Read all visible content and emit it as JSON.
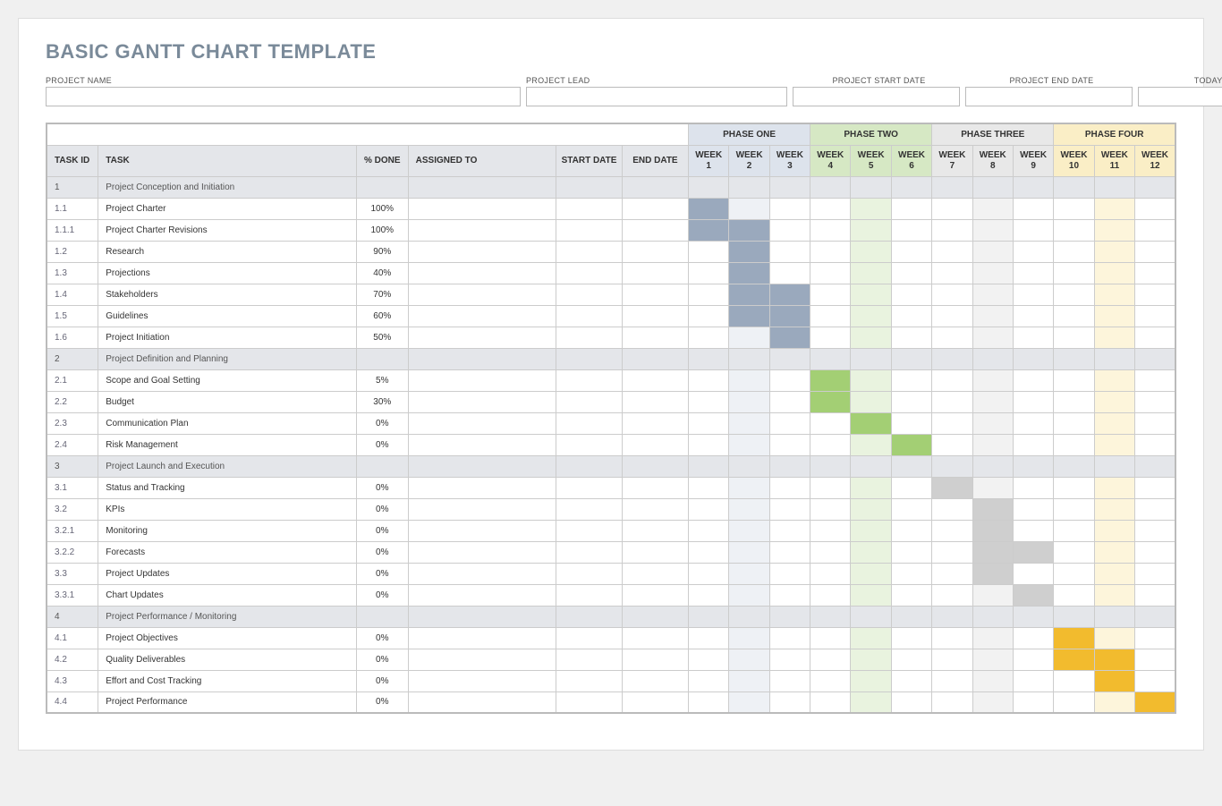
{
  "title": "BASIC GANTT CHART TEMPLATE",
  "meta": {
    "project_name_label": "PROJECT NAME",
    "project_lead_label": "PROJECT LEAD",
    "start_date_label": "PROJECT START DATE",
    "end_date_label": "PROJECT END DATE",
    "todays_date_label": "TODAY'S DATE",
    "project_name": "",
    "project_lead": "",
    "start_date": "",
    "end_date": "",
    "todays_date": ""
  },
  "columns": {
    "task_id": "TASK ID",
    "task": "TASK",
    "pct_done": "% DONE",
    "assigned_to": "ASSIGNED TO",
    "start_date": "START DATE",
    "end_date": "END DATE",
    "week_label": "WEEK"
  },
  "phases": [
    {
      "label": "PHASE ONE",
      "header_bg": "#dde3ec",
      "stripe_bg": "#eef1f5",
      "bar_color": "#9aa9bd"
    },
    {
      "label": "PHASE TWO",
      "header_bg": "#d6e8c4",
      "stripe_bg": "#e9f3df",
      "bar_color": "#a3cf74"
    },
    {
      "label": "PHASE THREE",
      "header_bg": "#e8e8e8",
      "stripe_bg": "#f2f2f2",
      "bar_color": "#cfcfcf"
    },
    {
      "label": "PHASE FOUR",
      "header_bg": "#faeec6",
      "stripe_bg": "#fdf5db",
      "bar_color": "#f2bb2e"
    }
  ],
  "weeks_per_phase": 3,
  "rows": [
    {
      "id": "1",
      "task": "Project Conception and Initiation",
      "pct": "",
      "section": true
    },
    {
      "id": "1.1",
      "task": "Project Charter",
      "pct": "100%",
      "bar_start": 1,
      "bar_end": 1
    },
    {
      "id": "1.1.1",
      "task": "Project Charter Revisions",
      "pct": "100%",
      "bar_start": 1,
      "bar_end": 2
    },
    {
      "id": "1.2",
      "task": "Research",
      "pct": "90%",
      "bar_start": 2,
      "bar_end": 2
    },
    {
      "id": "1.3",
      "task": "Projections",
      "pct": "40%",
      "bar_start": 2,
      "bar_end": 2
    },
    {
      "id": "1.4",
      "task": "Stakeholders",
      "pct": "70%",
      "bar_start": 2,
      "bar_end": 3
    },
    {
      "id": "1.5",
      "task": "Guidelines",
      "pct": "60%",
      "bar_start": 2,
      "bar_end": 3
    },
    {
      "id": "1.6",
      "task": "Project Initiation",
      "pct": "50%",
      "bar_start": 3,
      "bar_end": 3
    },
    {
      "id": "2",
      "task": "Project Definition and Planning",
      "pct": "",
      "section": true
    },
    {
      "id": "2.1",
      "task": "Scope and Goal Setting",
      "pct": "5%",
      "bar_start": 4,
      "bar_end": 4
    },
    {
      "id": "2.2",
      "task": "Budget",
      "pct": "30%",
      "bar_start": 4,
      "bar_end": 4
    },
    {
      "id": "2.3",
      "task": "Communication Plan",
      "pct": "0%",
      "bar_start": 5,
      "bar_end": 5
    },
    {
      "id": "2.4",
      "task": "Risk Management",
      "pct": "0%",
      "bar_start": 6,
      "bar_end": 6
    },
    {
      "id": "3",
      "task": "Project Launch and Execution",
      "pct": "",
      "section": true
    },
    {
      "id": "3.1",
      "task": "Status and Tracking",
      "pct": "0%",
      "bar_start": 7,
      "bar_end": 7
    },
    {
      "id": "3.2",
      "task": "KPIs",
      "pct": "0%",
      "bar_start": 8,
      "bar_end": 8
    },
    {
      "id": "3.2.1",
      "task": "Monitoring",
      "pct": "0%",
      "bar_start": 8,
      "bar_end": 8
    },
    {
      "id": "3.2.2",
      "task": "Forecasts",
      "pct": "0%",
      "bar_start": 8,
      "bar_end": 9
    },
    {
      "id": "3.3",
      "task": "Project Updates",
      "pct": "0%",
      "bar_start": 8,
      "bar_end": 8
    },
    {
      "id": "3.3.1",
      "task": "Chart Updates",
      "pct": "0%",
      "bar_start": 9,
      "bar_end": 9
    },
    {
      "id": "4",
      "task": "Project Performance / Monitoring",
      "pct": "",
      "section": true
    },
    {
      "id": "4.1",
      "task": "Project Objectives",
      "pct": "0%",
      "bar_start": 10,
      "bar_end": 10
    },
    {
      "id": "4.2",
      "task": "Quality Deliverables",
      "pct": "0%",
      "bar_start": 10,
      "bar_end": 11
    },
    {
      "id": "4.3",
      "task": "Effort and Cost Tracking",
      "pct": "0%",
      "bar_start": 11,
      "bar_end": 11
    },
    {
      "id": "4.4",
      "task": "Project Performance",
      "pct": "0%",
      "bar_start": 12,
      "bar_end": 12
    }
  ],
  "colors": {
    "header_bg": "#e4e6ea",
    "section_bg": "#e4e6ea",
    "border": "#cccccc"
  }
}
